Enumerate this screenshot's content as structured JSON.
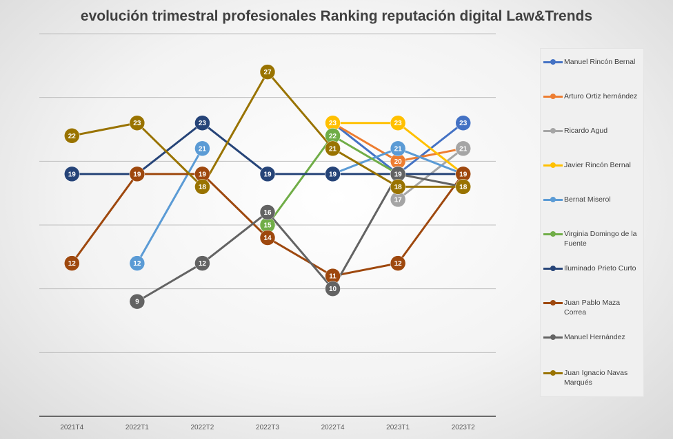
{
  "chart_data": {
    "type": "line",
    "title": "evolución trimestral profesionales Ranking reputación digital Law&Trends",
    "xlabel": "",
    "ylabel": "",
    "categories": [
      "2021T4",
      "2022T1",
      "2022T2",
      "2022T3",
      "2022T4",
      "2023T1",
      "2023T2"
    ],
    "ylim": [
      0,
      30
    ],
    "grid": true,
    "legend_position": "right",
    "series": [
      {
        "name": "Manuel Rincón Bernal",
        "color": "#4472C4",
        "values": [
          null,
          null,
          null,
          null,
          23,
          19,
          23
        ]
      },
      {
        "name": "Arturo Ortiz hernández",
        "color": "#ED7D31",
        "values": [
          null,
          null,
          null,
          null,
          23,
          20,
          21
        ]
      },
      {
        "name": "Ricardo Agud",
        "color": "#A5A5A5",
        "values": [
          null,
          null,
          null,
          null,
          null,
          17,
          21
        ]
      },
      {
        "name": "Javier  Rincón Bernal",
        "color": "#FFC000",
        "values": [
          null,
          null,
          null,
          null,
          23,
          23,
          19
        ]
      },
      {
        "name": "Bernat Miserol",
        "color": "#5B9BD5",
        "values": [
          null,
          12,
          21,
          null,
          19,
          21,
          19
        ]
      },
      {
        "name": "Virginia Domingo de la Fuente",
        "color": "#70AD47",
        "values": [
          null,
          null,
          null,
          15,
          22,
          19,
          null
        ]
      },
      {
        "name": "Iluminado  Prieto Curto",
        "color": "#264478",
        "values": [
          19,
          19,
          23,
          19,
          19,
          19,
          19
        ]
      },
      {
        "name": "Juan Pablo Maza Correa",
        "color": "#9E480E",
        "values": [
          12,
          19,
          19,
          14,
          11,
          12,
          19
        ]
      },
      {
        "name": "Manuel Hernández",
        "color": "#636363",
        "values": [
          null,
          9,
          12,
          16,
          10,
          19,
          18
        ]
      },
      {
        "name": "Juan Ignacio  Navas Marqués",
        "color": "#997300",
        "values": [
          22,
          23,
          18,
          27,
          21,
          18,
          18
        ]
      }
    ]
  }
}
